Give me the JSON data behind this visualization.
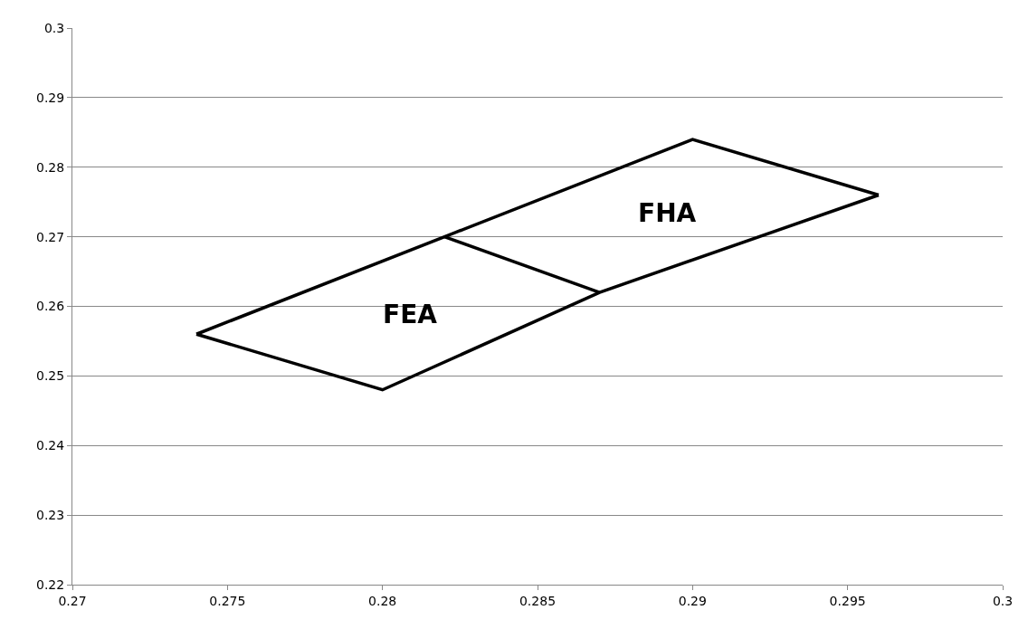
{
  "chart_data": {
    "type": "line",
    "series": [
      {
        "color": "#000000",
        "x": [
          0.274,
          0.28,
          0.287,
          0.296
        ],
        "values": [
          0.256,
          0.248,
          0.262,
          0.276
        ]
      },
      {
        "color": "#000000",
        "x": [
          0.274,
          0.282,
          0.29,
          0.296
        ],
        "values": [
          0.256,
          0.27,
          0.284,
          0.276
        ]
      },
      {
        "color": "#000000",
        "x": [
          0.282,
          0.287
        ],
        "values": [
          0.27,
          0.262
        ]
      }
    ],
    "annotations": [
      "FEA",
      "FHA"
    ],
    "xlim": [
      0.27,
      0.3
    ],
    "xticks": [
      0.27,
      0.275,
      0.28,
      0.285,
      0.29,
      0.295,
      0.3
    ],
    "ylim": [
      0.22,
      0.3
    ],
    "yticks": [
      0.22,
      0.23,
      0.24,
      0.25,
      0.26,
      0.27,
      0.28,
      0.29,
      0.3
    ],
    "grid": "y",
    "marker": "none",
    "line_style": "solid"
  }
}
